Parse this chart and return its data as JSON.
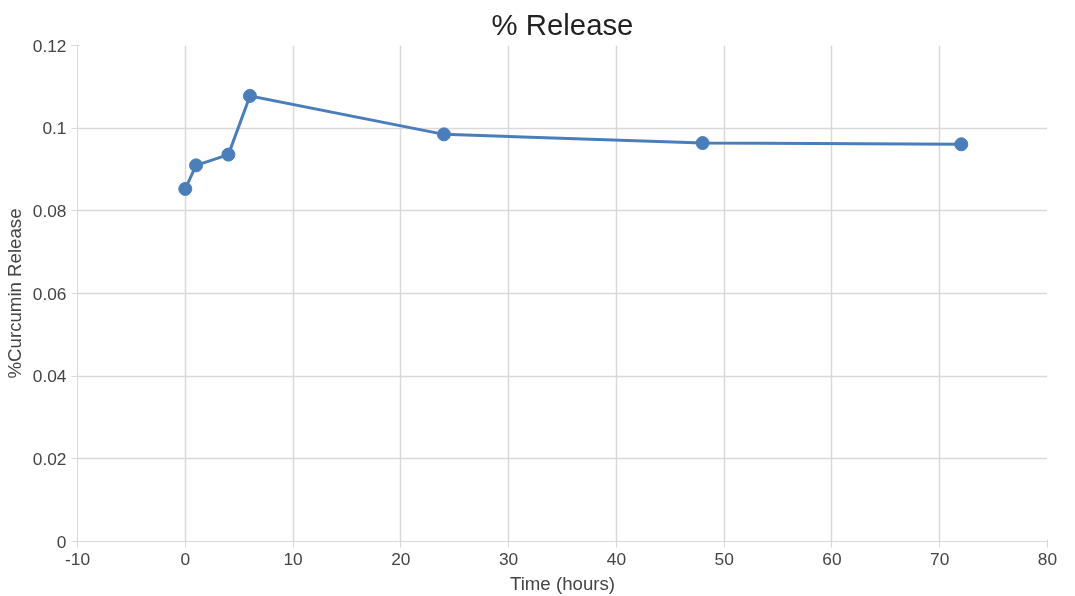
{
  "chart_data": {
    "type": "line",
    "title": "% Release",
    "xlabel": "Time (hours)",
    "ylabel": "%Curcumin Release",
    "x": [
      0,
      1,
      4,
      6,
      24,
      48,
      72
    ],
    "series": [
      {
        "color": "#4a7ebb",
        "values": [
          0.0853,
          0.091,
          0.0936,
          0.1078,
          0.0985,
          0.0964,
          0.0961
        ]
      }
    ],
    "xlim": [
      -10,
      80
    ],
    "xticks": [
      -10,
      0,
      10,
      20,
      30,
      40,
      50,
      60,
      70,
      80
    ],
    "ylim": [
      0,
      0.12
    ],
    "yticks": [
      0,
      {
        "value": 0.02,
        "label": "0.02"
      },
      {
        "value": 0.04,
        "label": "0.04"
      },
      {
        "value": 0.06,
        "label": "0.06"
      },
      {
        "value": 0.08,
        "label": "0.08"
      },
      {
        "value": 0.1,
        "label": "0.1"
      },
      {
        "value": 0.12,
        "label": "0.12"
      }
    ],
    "grid": true,
    "marker": "circle",
    "line_style": "solid"
  }
}
